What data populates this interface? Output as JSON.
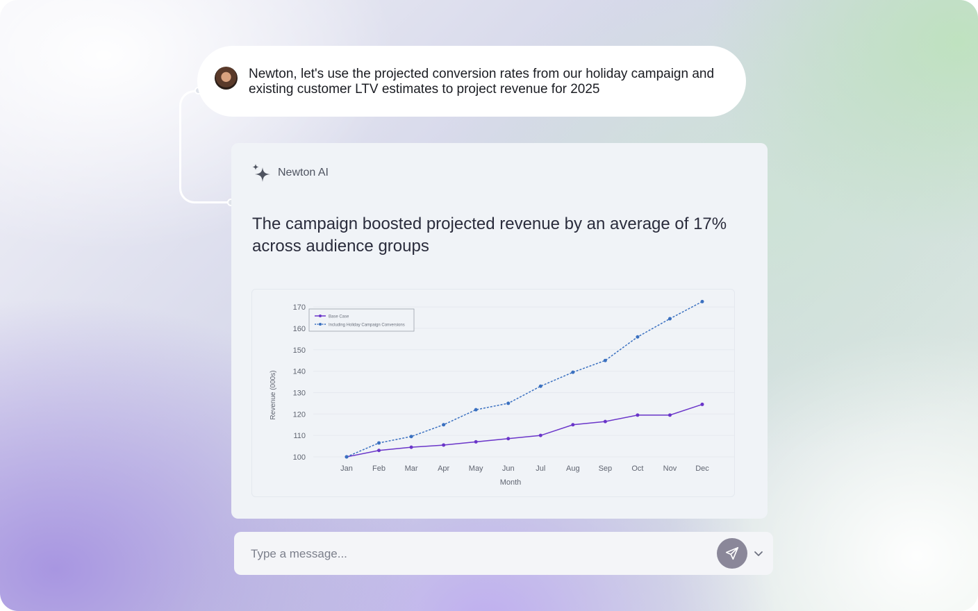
{
  "conversation": {
    "user_message": "Newton, let's use the projected conversion rates from our holiday campaign and existing customer LTV estimates to project revenue for 2025",
    "ai_name": "Newton AI",
    "ai_heading": "The campaign boosted projected revenue by an average of 17% across audience groups"
  },
  "input": {
    "placeholder": "Type a message..."
  },
  "icons": {
    "avatar": "user-avatar",
    "assistant": "sparkle-icon",
    "send": "send-icon",
    "expand": "chevron-down-icon"
  },
  "colors": {
    "base_series": "#6a35c9",
    "campaign_series": "#3a70c0",
    "send_button": "#8a8799"
  },
  "chart_data": {
    "type": "line",
    "title": "",
    "xlabel": "Month",
    "ylabel": "Revenue (000s)",
    "categories": [
      "Jan",
      "Feb",
      "Mar",
      "Apr",
      "May",
      "Jun",
      "Jul",
      "Aug",
      "Sep",
      "Oct",
      "Nov",
      "Dec"
    ],
    "y_ticks": [
      100,
      110,
      120,
      130,
      140,
      150,
      160,
      170
    ],
    "ylim": [
      100,
      171
    ],
    "grid": true,
    "legend_position": "top-left",
    "series": [
      {
        "name": "Base Case",
        "style": "solid",
        "color": "#6a35c9",
        "values": [
          100,
          103,
          104.5,
          105.5,
          107,
          108.5,
          110,
          115,
          116.5,
          119.5,
          119.5,
          124.5
        ]
      },
      {
        "name": "Including Holiday Campaign Conversions",
        "style": "dotted",
        "color": "#3a70c0",
        "values": [
          100,
          106.5,
          109.5,
          115,
          122,
          125,
          133,
          139.5,
          145,
          156,
          164.5,
          172.5
        ]
      }
    ]
  }
}
